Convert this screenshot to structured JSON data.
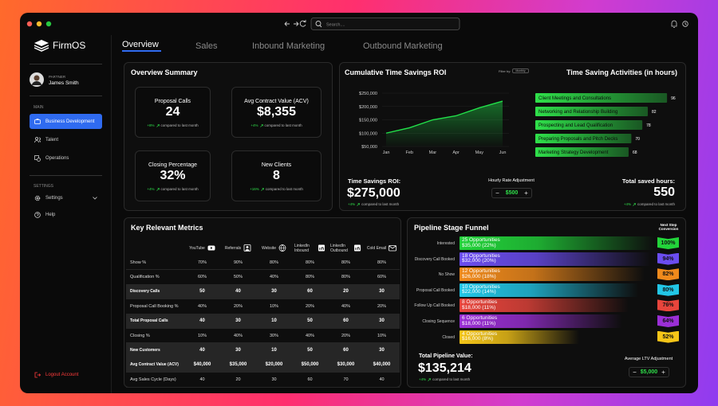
{
  "window": {
    "search_placeholder": "Search...."
  },
  "sidebar": {
    "brand": "FirmOS",
    "user_role": "PARTNER",
    "user_name": "James Smith",
    "section_main": "MAIN",
    "nav_main": [
      "Business Development",
      "Talent",
      "Operations"
    ],
    "section_settings": "SETTINGS",
    "nav_settings": [
      "Settings",
      "Help"
    ],
    "logout": "Logout Account"
  },
  "tabs": [
    "Overview",
    "Sales",
    "Inbound Marketing",
    "Outbound Marketing"
  ],
  "overview": {
    "title": "Overview Summary",
    "cards": [
      {
        "label": "Proposal Calls",
        "value": "24",
        "change": "+8%",
        "note": "compared to last month"
      },
      {
        "label": "Avg Contract Value (ACV)",
        "value": "$8,355",
        "change": "+4%",
        "note": "compared to last month"
      },
      {
        "label": "Closing Percentage",
        "value": "32%",
        "change": "+4%",
        "note": "compared to last month"
      },
      {
        "label": "New Clients",
        "value": "8",
        "change": "+16%",
        "note": "compared to last month"
      }
    ]
  },
  "roi_chart": {
    "type": "line",
    "title": "Cumulative Time Savings ROI",
    "filter_label": "Filter by:",
    "filter": "Monthly",
    "categories": [
      "Jan",
      "Feb",
      "Mar",
      "Apr",
      "May",
      "Jun"
    ],
    "values": [
      100000,
      120000,
      150000,
      165000,
      195000,
      220000
    ],
    "color": "#22e04a",
    "ylim": [
      40000,
      260000
    ],
    "yticks": [
      {
        "value": 50000,
        "label": "$50,000"
      },
      {
        "value": 100000,
        "label": "$100,000"
      },
      {
        "value": 150000,
        "label": "$150,000"
      },
      {
        "value": 200000,
        "label": "$200,000"
      },
      {
        "value": 250000,
        "label": "$250,000"
      }
    ],
    "grid": true
  },
  "activities_chart": {
    "type": "bar",
    "orientation": "horizontal",
    "title": "Time Saving Activities (in hours)",
    "categories": [
      "Client Meetings and Consultations",
      "Networking and Relationship Building",
      "Prospecting and Lead Qualification",
      "Preparing Proposals and Pitch Decks",
      "Marketing Strategy Development"
    ],
    "values": [
      96,
      82,
      78,
      70,
      68
    ],
    "color": "#2fe04a",
    "xlim": [
      0,
      100
    ]
  },
  "roi_summary": {
    "label": "Time Savings ROI:",
    "value": "$275,000",
    "change": "+4%",
    "note": "compared to last month",
    "rate_label": "Hourly Rate Adjustment",
    "rate_value": "$500",
    "hours_label": "Total saved hours:",
    "hours_value": "550",
    "hours_change": "+4%",
    "hours_note": "compared to last month"
  },
  "metrics": {
    "title": "Key Relevant Metrics",
    "columns": [
      "YouTube",
      "Referrals",
      "Website",
      "LinkedIn Inbound",
      "LinkedIn Outbound",
      "Cold Email"
    ],
    "rows": [
      {
        "label": "Show %",
        "bold": false,
        "cells": [
          "70%",
          "90%",
          "80%",
          "80%",
          "80%",
          "80%"
        ]
      },
      {
        "label": "Qualification %",
        "bold": false,
        "cells": [
          "60%",
          "50%",
          "40%",
          "80%",
          "80%",
          "60%"
        ]
      },
      {
        "label": "Discovery Calls",
        "bold": true,
        "cells": [
          "50",
          "40",
          "30",
          "60",
          "20",
          "30"
        ]
      },
      {
        "label": "Proposal Call Booking %",
        "bold": false,
        "cells": [
          "40%",
          "20%",
          "10%",
          "20%",
          "40%",
          "20%"
        ]
      },
      {
        "label": "Total Proposal Calls",
        "bold": true,
        "cells": [
          "40",
          "30",
          "10",
          "50",
          "60",
          "30"
        ]
      },
      {
        "label": "Closing %",
        "bold": false,
        "cells": [
          "10%",
          "40%",
          "30%",
          "40%",
          "20%",
          "10%"
        ]
      },
      {
        "label": "New Customers",
        "bold": true,
        "cells": [
          "40",
          "30",
          "10",
          "50",
          "60",
          "30"
        ]
      },
      {
        "label": "Avg Contract Value (ACV)",
        "bold": true,
        "cells": [
          "$40,000",
          "$35,000",
          "$20,000",
          "$50,000",
          "$30,000",
          "$40,000"
        ]
      },
      {
        "label": "Avg Sales Cycle (Days)",
        "bold": false,
        "cells": [
          "40",
          "20",
          "30",
          "60",
          "70",
          "40"
        ]
      }
    ]
  },
  "funnel": {
    "title": "Pipeline Stage Funnel",
    "conversion_header": "Next Step Conversion",
    "stages": [
      {
        "name": "Interested",
        "opportunities": "25 Opportunities",
        "amount": "$35,000 (22%)",
        "conversion": "100%",
        "color": "#22d33a"
      },
      {
        "name": "Discovery Call Booked",
        "opportunities": "18 Opportunities",
        "amount": "$32,000 (20%)",
        "conversion": "94%",
        "color": "#6b4df0"
      },
      {
        "name": "No Show",
        "opportunities": "12 Opportunities",
        "amount": "$26,000 (18%)",
        "conversion": "82%",
        "color": "#f08a1c"
      },
      {
        "name": "Proposal Call Booked",
        "opportunities": "10 Opportunities",
        "amount": "$22,000 (14%)",
        "conversion": "80%",
        "color": "#22c6e6"
      },
      {
        "name": "Follow Up Call Booked",
        "opportunities": "8 Opportunities",
        "amount": "$18,000 (11%)",
        "conversion": "76%",
        "color": "#e8453c"
      },
      {
        "name": "Closing Sequence",
        "opportunities": "6 Opportunities",
        "amount": "$18,000 (11%)",
        "conversion": "64%",
        "color": "#9b2fd6"
      },
      {
        "name": "Closed",
        "opportunities": "4 Opportunities",
        "amount": "$16,000 (8%)",
        "conversion": "52%",
        "color": "#f5c518"
      }
    ],
    "total_label": "Total Pipeline Value:",
    "total_value": "$135,214",
    "total_change": "+4%",
    "total_note": "compared to last month",
    "ltv_label": "Average LTV Adjustment",
    "ltv_value": "$5,000"
  }
}
